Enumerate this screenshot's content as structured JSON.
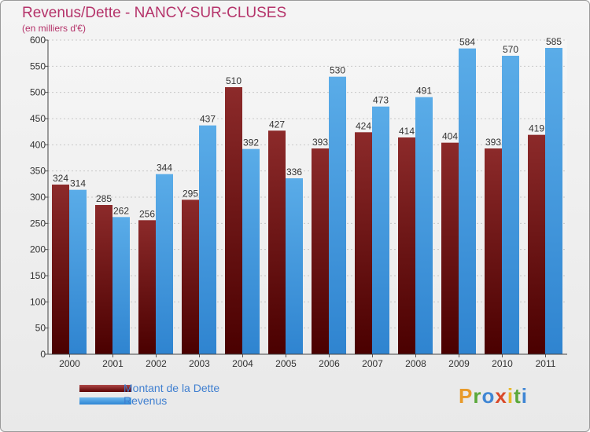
{
  "chart_data": {
    "type": "bar",
    "title": "Revenus/Dette - NANCY-SUR-CLUSES",
    "subtitle": "(en milliers d'€)",
    "xlabel": "",
    "ylabel": "",
    "ylim": [
      0,
      600
    ],
    "yticks": [
      0,
      50,
      100,
      150,
      200,
      250,
      300,
      350,
      400,
      450,
      500,
      550,
      600
    ],
    "grid": true,
    "legend_position": "bottom-left",
    "categories": [
      "2000",
      "2001",
      "2002",
      "2003",
      "2004",
      "2005",
      "2006",
      "2007",
      "2008",
      "2009",
      "2010",
      "2011"
    ],
    "series": [
      {
        "name": "Montant de la Dette",
        "color": "#7a1a1a",
        "values": [
          324,
          285,
          256,
          295,
          510,
          427,
          393,
          424,
          414,
          404,
          393,
          419
        ]
      },
      {
        "name": "Revenus",
        "color": "#4a9fe0",
        "values": [
          314,
          262,
          344,
          437,
          392,
          336,
          530,
          473,
          491,
          584,
          570,
          585
        ]
      }
    ]
  },
  "logo": {
    "letters": [
      "P",
      "r",
      "o",
      "x",
      "i",
      "t",
      "i"
    ],
    "colors": [
      "#e89a2a",
      "#5aa83a",
      "#3f86d4",
      "#d94a2a",
      "#e8b82a",
      "#5aa83a",
      "#3f86d4"
    ]
  }
}
